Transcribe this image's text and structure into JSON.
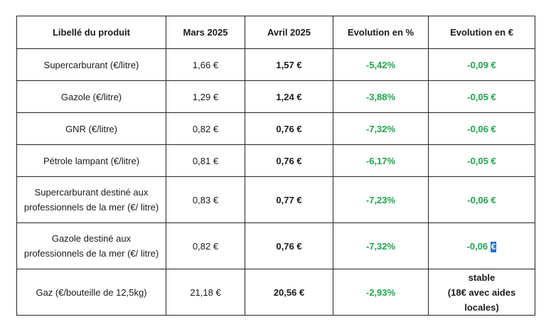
{
  "table": {
    "headers": [
      "Libellé du produit",
      "Mars 2025",
      "Avril 2025",
      "Evolution en %",
      "Evolution en €"
    ],
    "rows": [
      {
        "product": "Supercarburant (€/litre)",
        "mars": "1,66 €",
        "avril": "1,57 €",
        "pct": "-5,42%",
        "eur": "-0,09 €"
      },
      {
        "product": "Gazole (€/litre)",
        "mars": "1,29 €",
        "avril": "1,24 €",
        "pct": "-3,88%",
        "eur": "-0,05 €"
      },
      {
        "product": "GNR (€/litre)",
        "mars": "0,82 €",
        "avril": "0,76 €",
        "pct": "-7,32%",
        "eur": "-0,06 €"
      },
      {
        "product": "Pétrole lampant (€/litre)",
        "mars": "0,81 €",
        "avril": "0,76 €",
        "pct": "-6,17%",
        "eur": "-0,05 €"
      },
      {
        "product": "Supercarburant destiné aux professionnels de la mer (€/ litre)",
        "mars": "0,83 €",
        "avril": "0,77 €",
        "pct": "-7,23%",
        "eur": "-0,06 €"
      },
      {
        "product": "Gazole destiné aux professionnels de la mer (€/ litre)",
        "mars": "0,82 €",
        "avril": "0,76 €",
        "pct": "-7,32%",
        "eur_value": "-0,06",
        "eur_symbol": "€"
      },
      {
        "product": "Gaz (€/bouteille de 12,5kg)",
        "mars": "21,18 €",
        "avril": "20,56 €",
        "pct": "-2,93%",
        "eur_line1": "stable",
        "eur_line2": "(18€ avec aides locales)"
      }
    ]
  },
  "colors": {
    "decrease": "#1aa64a",
    "selection": "#1f6fd1",
    "border": "#222222"
  }
}
